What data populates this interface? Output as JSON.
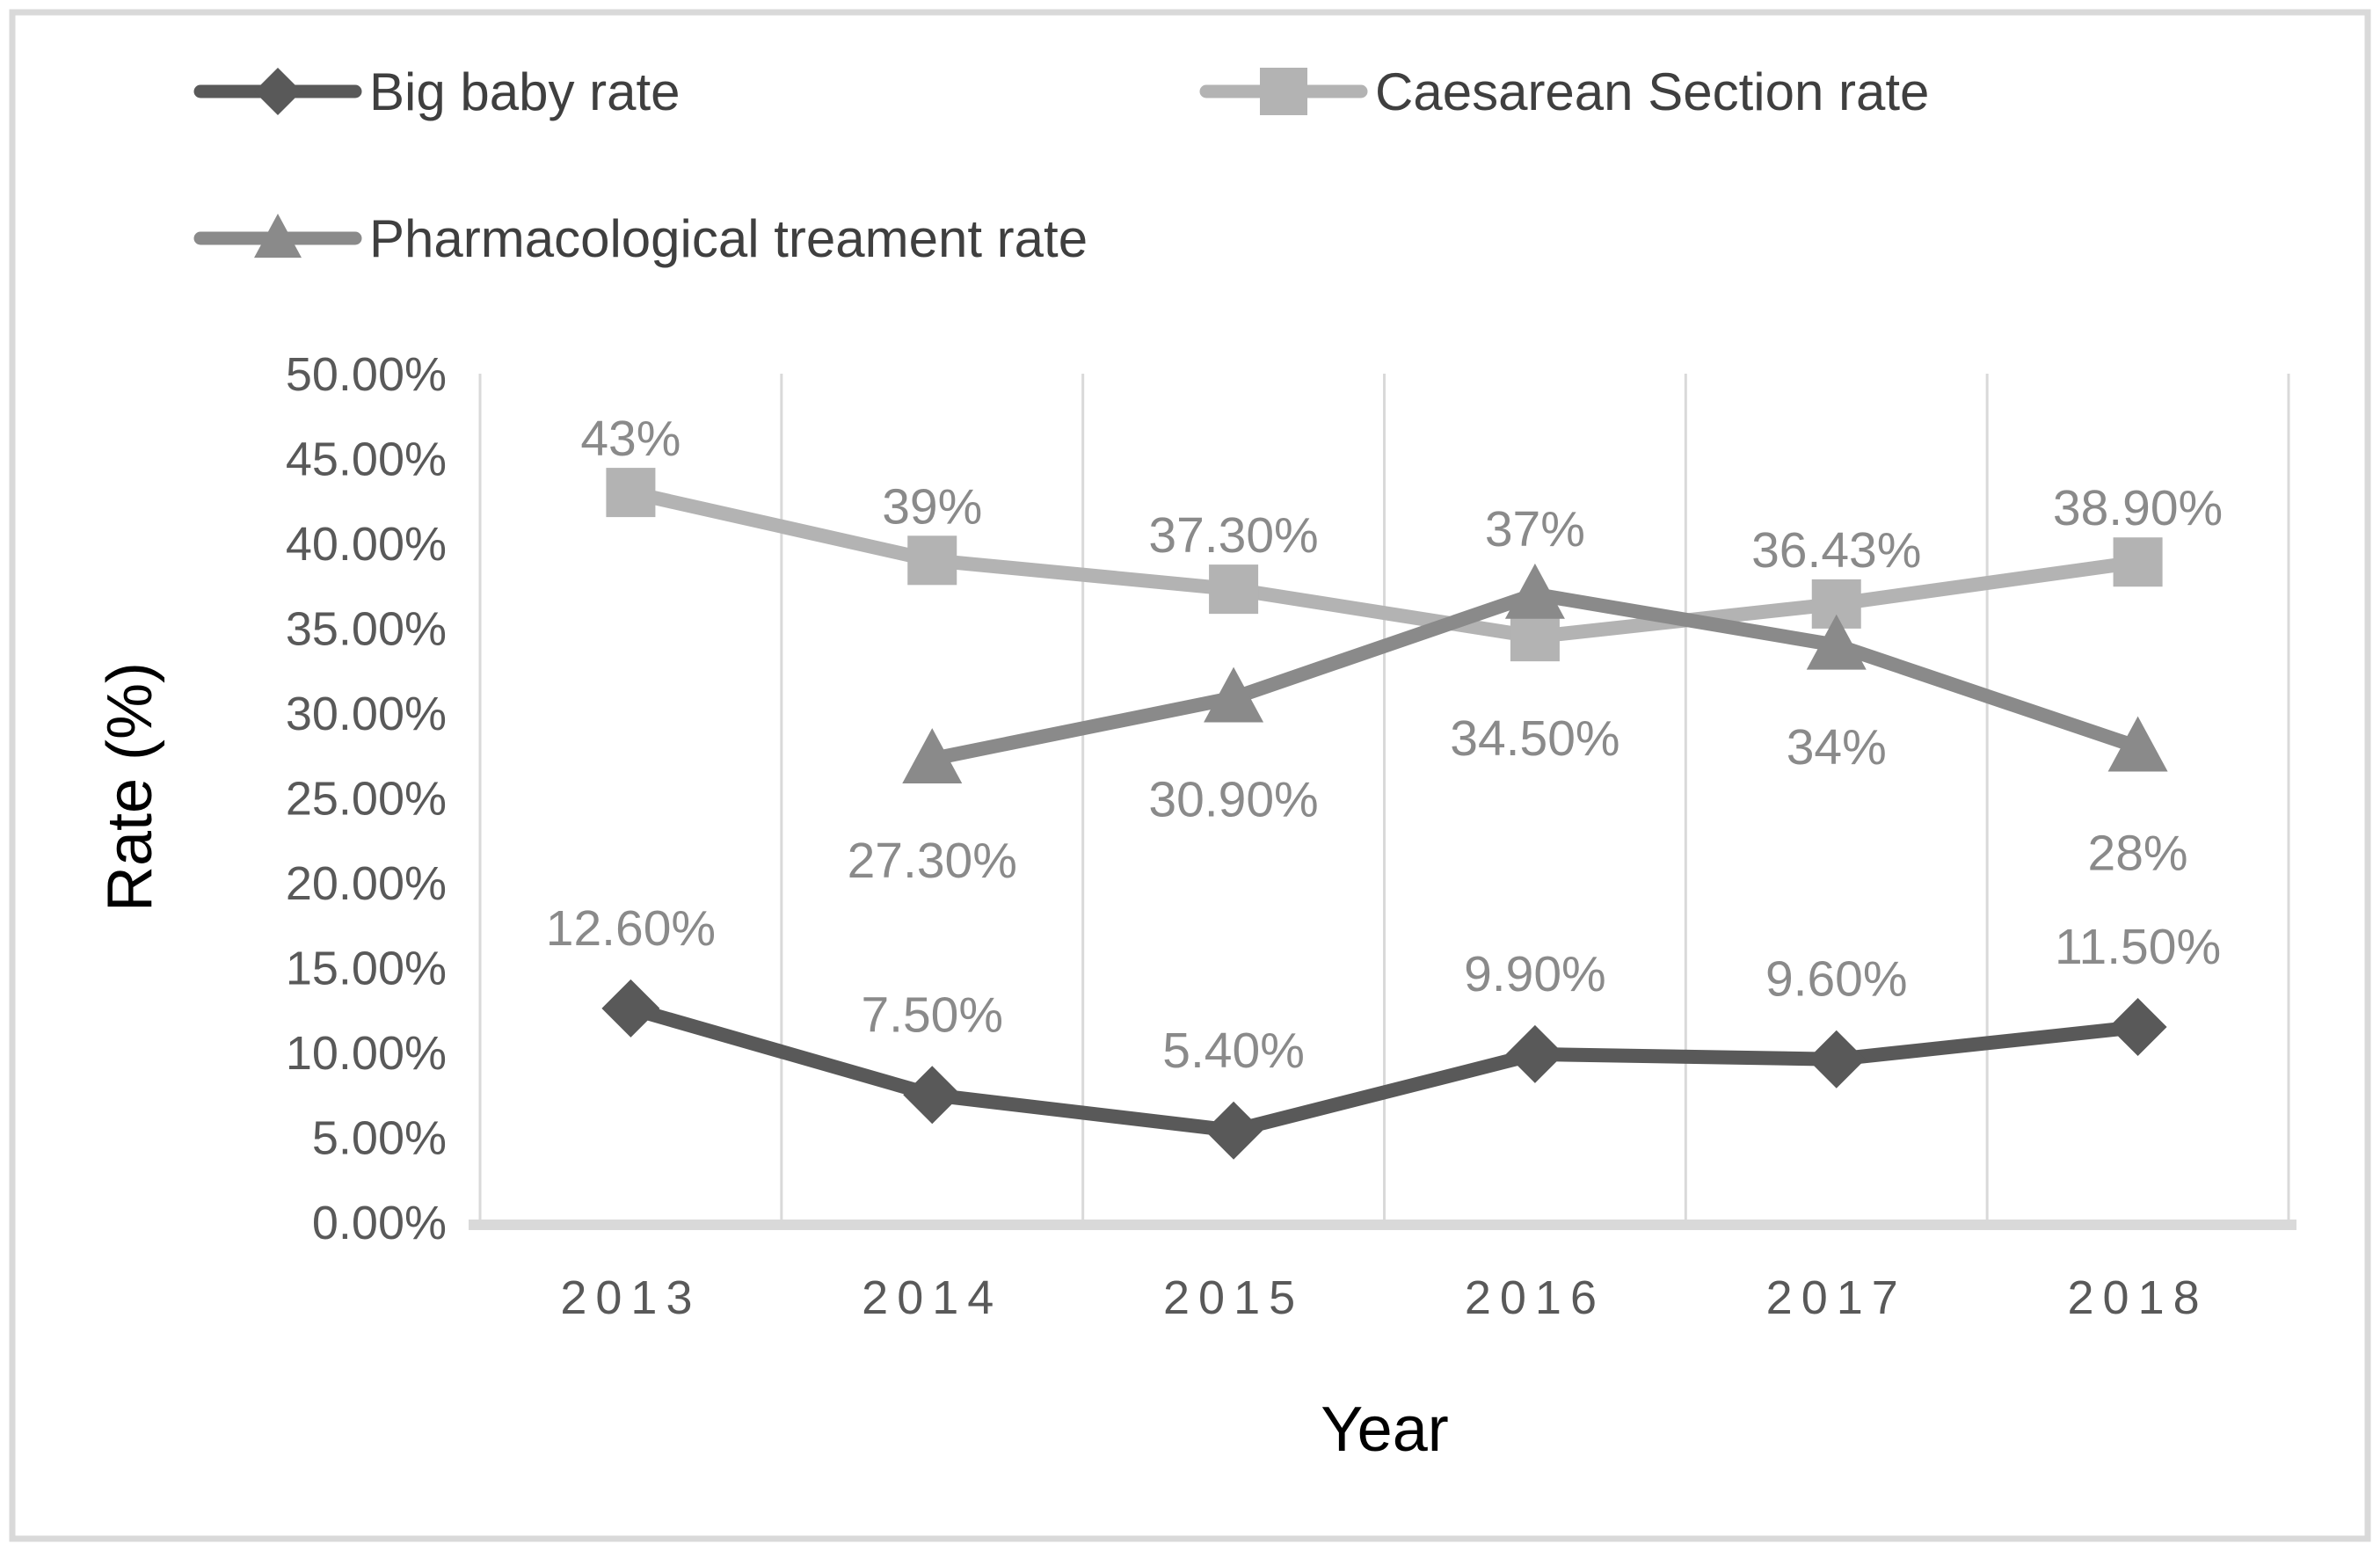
{
  "legend": {
    "position": "top-left-two-rows",
    "items": [
      {
        "label": "Big baby rate",
        "marker": "diamond",
        "color": "#595959"
      },
      {
        "label": "Caesarean Section rate",
        "marker": "square",
        "color": "#b3b3b3"
      },
      {
        "label": "Pharmacological treament rate",
        "marker": "triangle",
        "color": "#8a8a8a"
      }
    ]
  },
  "chart_data": {
    "type": "line",
    "title": "",
    "xlabel": "Year",
    "ylabel": "Rate (%)",
    "categories": [
      "2013",
      "2014",
      "2015",
      "2016",
      "2017",
      "2018"
    ],
    "x_axis": {
      "title": "Year",
      "tick_color": "#595959",
      "title_color": "#000000"
    },
    "y_axis": {
      "title": "Rate (%)",
      "min": 0,
      "max": 50,
      "step": 5,
      "tick_labels": [
        {
          "value": 50,
          "label": "50.00%"
        },
        {
          "value": 45,
          "label": "45.00%"
        },
        {
          "value": 40,
          "label": "40.00%"
        },
        {
          "value": 35,
          "label": "35.00%"
        },
        {
          "value": 30,
          "label": "30.00%"
        },
        {
          "value": 25,
          "label": "25.00%"
        },
        {
          "value": 20,
          "label": "20.00%"
        },
        {
          "value": 15,
          "label": "15.00%"
        },
        {
          "value": 10,
          "label": "10.00%"
        },
        {
          "value": 5,
          "label": "5.00%"
        },
        {
          "value": 0,
          "label": "0.00%"
        }
      ],
      "tick_color": "#595959",
      "title_color": "#000000"
    },
    "grid": "vertical-only",
    "gridline_color": "#d9d9d9",
    "axis_line_color": "#d9d9d9",
    "data_label_color": "#8a8a8a",
    "series": [
      {
        "name": "Caesarean Section rate",
        "marker": "square",
        "color": "#b3b3b3",
        "values": [
          43,
          39,
          37.3,
          34.5,
          36.43,
          38.9
        ],
        "labels": [
          {
            "text": "43%",
            "dy": -42
          },
          {
            "text": "39%",
            "dy": -42
          },
          {
            "text": "37.30%",
            "dy": -42
          },
          {
            "text": "34.50%",
            "dy": 135
          },
          {
            "text": "36.43%",
            "dy": -42
          },
          {
            "text": "38.90%",
            "dy": -42
          }
        ]
      },
      {
        "name": "Pharmacological treament rate",
        "marker": "triangle",
        "color": "#8a8a8a",
        "values": [
          null,
          27.3,
          30.9,
          37,
          34,
          28
        ],
        "labels": [
          null,
          {
            "text": "27.30%",
            "dy": 135
          },
          {
            "text": "30.90%",
            "dy": 135
          },
          {
            "text": "37%",
            "dy": -55
          },
          {
            "text": "34%",
            "dy": 135
          },
          {
            "text": "28%",
            "dy": 140
          }
        ]
      },
      {
        "name": "Big baby rate",
        "marker": "diamond",
        "color": "#595959",
        "values": [
          12.6,
          7.5,
          5.4,
          9.9,
          9.6,
          11.5
        ],
        "labels": [
          {
            "text": "12.60%",
            "dy": -72
          },
          {
            "text": "7.50%",
            "dy": -72
          },
          {
            "text": "5.40%",
            "dy": -72
          },
          {
            "text": "9.90%",
            "dy": -72
          },
          {
            "text": "9.60%",
            "dy": -72
          },
          {
            "text": "11.50%",
            "dy": -72
          }
        ]
      }
    ]
  }
}
